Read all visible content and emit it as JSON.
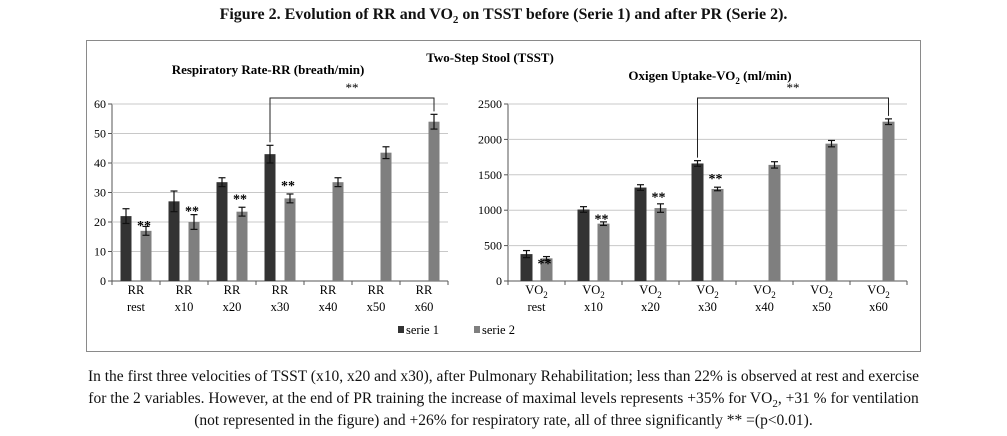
{
  "figure_title_parts": [
    "Figure 2. Evolution of RR and VO",
    "2",
    " on TSST before (Serie 1) and after PR (Serie 2)."
  ],
  "colors": {
    "serie1": "#333333",
    "serie2": "#7f7f7f",
    "axis": "#555555"
  },
  "frame_title": "Two-Step Stool (TSST)",
  "legend": [
    {
      "label": "serie 1",
      "color": "#333333"
    },
    {
      "label": "serie 2",
      "color": "#7f7f7f"
    }
  ],
  "chart_data": [
    {
      "type": "bar",
      "title": "Respiratory Rate-RR (breath/min)",
      "title_parts": [
        "Respiratory Rate-RR (breath/min)"
      ],
      "categories": [
        {
          "line1": "RR",
          "sub": "",
          "line2": "rest"
        },
        {
          "line1": "RR",
          "sub": "",
          "line2": "x10"
        },
        {
          "line1": "RR",
          "sub": "",
          "line2": "x20"
        },
        {
          "line1": "RR",
          "sub": "",
          "line2": "x30"
        },
        {
          "line1": "RR",
          "sub": "",
          "line2": "x40"
        },
        {
          "line1": "RR",
          "sub": "",
          "line2": "x50"
        },
        {
          "line1": "RR",
          "sub": "",
          "line2": "x60"
        }
      ],
      "series": [
        {
          "name": "serie 1",
          "values": [
            22,
            27,
            33.5,
            43,
            null,
            null,
            null
          ],
          "errors": [
            2.5,
            3.5,
            1.5,
            3,
            null,
            null,
            null
          ]
        },
        {
          "name": "serie 2",
          "values": [
            17,
            20,
            23.5,
            28,
            33.5,
            43.5,
            54
          ],
          "errors": [
            1.5,
            2.5,
            1.5,
            1.5,
            1.5,
            2,
            2.5
          ]
        }
      ],
      "significance": [
        "**",
        "**",
        "**",
        "**",
        null,
        null,
        null
      ],
      "bracket": {
        "from": 3,
        "to": 6,
        "label": "**"
      },
      "ylim": [
        0,
        60
      ],
      "yticks": [
        0,
        10,
        20,
        30,
        40,
        50,
        60
      ]
    },
    {
      "type": "bar",
      "title": "Oxigen Uptake-VO2 (ml/min)",
      "title_parts": [
        "Oxigen Uptake-VO",
        "2",
        " (ml/min)"
      ],
      "categories": [
        {
          "line1": "VO",
          "sub": "2",
          "line2": "rest"
        },
        {
          "line1": "VO",
          "sub": "2",
          "line2": "x10"
        },
        {
          "line1": "VO",
          "sub": "2",
          "line2": "x20"
        },
        {
          "line1": "VO",
          "sub": "2",
          "line2": "x30"
        },
        {
          "line1": "VO",
          "sub": "2",
          "line2": "x40"
        },
        {
          "line1": "VO",
          "sub": "2",
          "line2": "x50"
        },
        {
          "line1": "VO",
          "sub": "2",
          "line2": "x60"
        }
      ],
      "series": [
        {
          "name": "serie 1",
          "values": [
            380,
            1010,
            1320,
            1660,
            null,
            null,
            null
          ],
          "errors": [
            50,
            40,
            40,
            40,
            null,
            null,
            null
          ]
        },
        {
          "name": "serie 2",
          "values": [
            320,
            810,
            1030,
            1300,
            1640,
            1940,
            2250
          ],
          "errors": [
            25,
            25,
            60,
            25,
            45,
            45,
            40
          ]
        }
      ],
      "significance": [
        "**",
        "**",
        "**",
        "**",
        null,
        null,
        null
      ],
      "bracket": {
        "from": 3,
        "to": 6,
        "label": "**"
      },
      "ylim": [
        0,
        2500
      ],
      "yticks": [
        0,
        500,
        1000,
        1500,
        2000,
        2500
      ]
    }
  ],
  "caption_parts": [
    "In the first three velocities of TSST (x10, x20 and x30), after Pulmonary Rehabilitation; less than 22% is observed at rest and exercise",
    "for the 2 variables. However, at the end of PR training the increase of maximal levels represents +35% for VO",
    "2",
    ", +31 % for ventilation",
    "(not represented in the figure) and +26% for respiratory rate, all of three significantly ** =(p<0.01)."
  ]
}
